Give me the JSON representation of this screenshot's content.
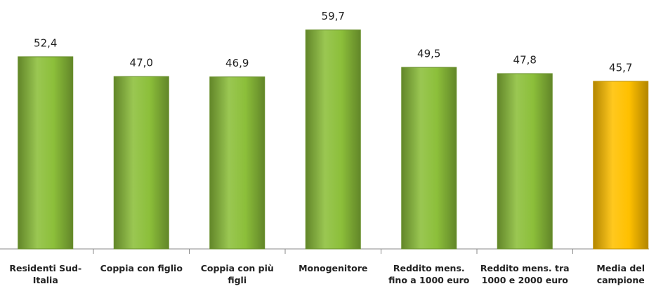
{
  "chart_data": {
    "type": "bar",
    "categories": [
      "Residenti Sud-Italia",
      "Coppia con figlio",
      "Coppia con più figli",
      "Monogenitore",
      "Reddito mens. fino a 1000 euro",
      "Reddito mens. tra 1000 e 2000 euro",
      "Media del campione"
    ],
    "values": [
      52.4,
      47.0,
      46.9,
      59.7,
      49.5,
      47.8,
      45.7
    ],
    "value_labels": [
      "52,4",
      "47,0",
      "46,9",
      "59,7",
      "49,5",
      "47,8",
      "45,7"
    ],
    "colors": [
      "#8cbf3a",
      "#8cbf3a",
      "#8cbf3a",
      "#8cbf3a",
      "#8cbf3a",
      "#8cbf3a",
      "#ffc000"
    ],
    "ylim": [
      0,
      65
    ]
  }
}
